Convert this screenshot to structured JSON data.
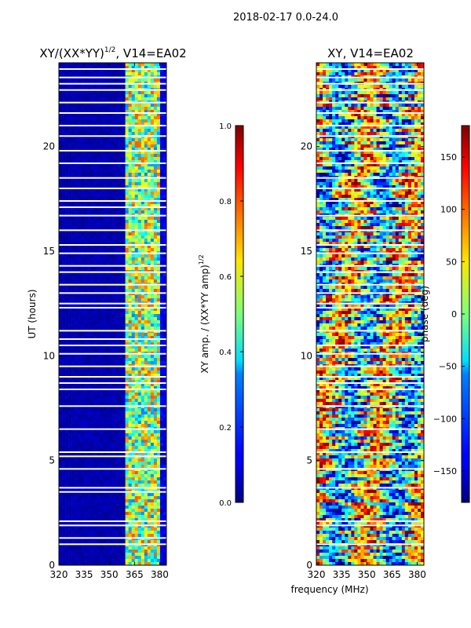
{
  "figure": {
    "suptitle": "2018-02-17 0.0-24.0",
    "shared_xlabel": "frequency (MHz)"
  },
  "chart_data": [
    {
      "type": "heatmap",
      "title_main": "XY/(XX*YY)",
      "title_sup": "1/2",
      "title_rest": ", V14=EA02",
      "xlabel": "",
      "ylabel": "UT (hours)",
      "xlim": [
        320,
        384
      ],
      "ylim": [
        0,
        24
      ],
      "xticks": [
        320,
        335,
        350,
        365,
        380
      ],
      "yticks": [
        0,
        5,
        10,
        15,
        20
      ],
      "colorbar": {
        "label_main": "XY amp. / (XX*YY amp)",
        "label_sup": "1/2",
        "range": [
          0.0,
          1.0
        ],
        "ticks": [
          "0.0",
          "0.2",
          "0.4",
          "0.6",
          "0.8",
          "1.0"
        ],
        "colormap": "jet"
      },
      "description_values": "amplitude ratio near 0 for 320-360 MHz; elevated 0.3-0.8 in 360-382 MHz band",
      "flagged_hours": [
        1.0,
        1.3,
        1.9,
        2.1,
        3.5,
        3.7,
        4.6,
        5.2,
        5.4,
        6.5,
        7.6,
        8.4,
        8.7,
        9.0,
        9.5,
        10.1,
        10.5,
        10.8,
        11.2,
        12.3,
        12.5,
        13.0,
        13.4,
        14.0,
        14.3,
        14.9,
        15.3,
        16.0,
        16.7,
        17.1,
        17.4,
        18.0,
        18.5,
        19.2,
        19.8,
        20.5,
        21.0,
        21.6,
        22.1,
        22.7,
        23.0,
        23.3,
        23.7
      ]
    },
    {
      "type": "heatmap",
      "title_main": "XY, V14=EA02",
      "xlabel": "frequency (MHz)",
      "ylabel": "",
      "xlim": [
        320,
        384
      ],
      "ylim": [
        0,
        24
      ],
      "xticks": [
        320,
        335,
        350,
        365,
        380
      ],
      "yticks": [
        0,
        5,
        10,
        15,
        20
      ],
      "colorbar": {
        "label": "phase (deg)",
        "range": [
          -180,
          180
        ],
        "ticks": [
          "150",
          "100",
          "50",
          "0",
          "−50",
          "−100",
          "−150"
        ],
        "tick_values": [
          150,
          100,
          50,
          0,
          -50,
          -100,
          -150
        ],
        "colormap": "jet"
      },
      "description_values": "phase varies widely across full band and time",
      "flagged_hours": [
        1.0,
        1.9,
        2.1,
        3.7,
        4.6,
        5.4,
        6.5,
        7.6,
        8.4,
        8.7,
        9.0,
        9.5,
        10.1,
        10.5,
        11.2,
        12.3,
        12.5,
        13.0,
        13.4,
        14.0,
        14.3,
        14.9,
        15.3,
        16.0,
        16.7,
        17.4,
        18.0,
        18.5,
        19.2,
        19.8,
        20.5,
        21.0,
        21.6,
        22.1,
        22.7,
        23.0,
        23.3,
        23.7
      ]
    }
  ]
}
